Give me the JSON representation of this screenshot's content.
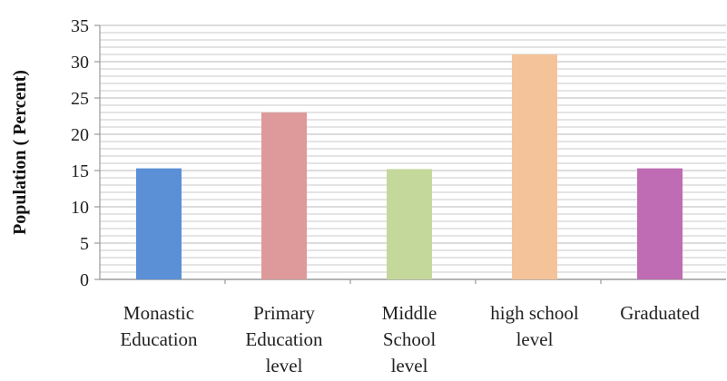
{
  "chart_data": {
    "type": "bar",
    "title": "",
    "xlabel": "",
    "ylabel": "Population ( Percent)",
    "categories": [
      [
        "Monastic",
        "Education"
      ],
      [
        "Primary",
        "Education",
        "level"
      ],
      [
        "Middle",
        "School",
        "level"
      ],
      [
        "high school",
        "level"
      ],
      [
        "Graduated"
      ]
    ],
    "values": [
      15.3,
      23,
      15.2,
      31,
      15.3
    ],
    "ylim": [
      0,
      35
    ],
    "yticks": [
      0,
      5,
      10,
      15,
      20,
      25,
      30,
      35
    ],
    "grid": true,
    "legend": "none",
    "colors": [
      "#5b8fd6",
      "#de9a9a",
      "#c5d89c",
      "#f5c39a",
      "#bf6cb4"
    ],
    "grid_color": "#c8c8c8",
    "axis_color": "#9a9a9a"
  }
}
